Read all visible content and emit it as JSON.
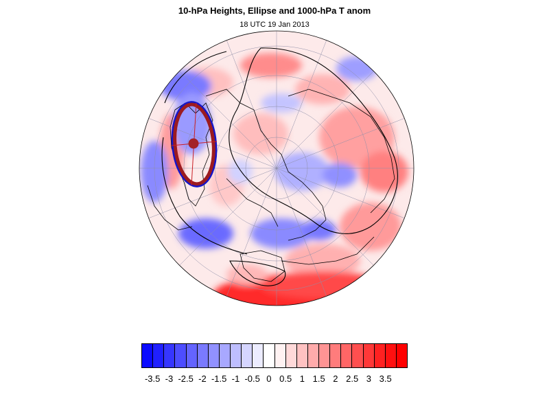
{
  "title": "10-hPa Heights, Ellipse and 1000-hPa T anom",
  "subtitle": "18 UTC 19 Jan 2013",
  "colorbar": {
    "levels": [
      "-3.5",
      "-3",
      "-2.5",
      "-2",
      "-1.5",
      "-1",
      "-0.5",
      "0",
      "0.5",
      "1",
      "1.5",
      "2",
      "2.5",
      "3",
      "3.5"
    ],
    "colors": [
      "#0b0bff",
      "#2020ff",
      "#3636ff",
      "#4d4dff",
      "#6464ff",
      "#7a7aff",
      "#9191ff",
      "#a8a8ff",
      "#bebeff",
      "#d5d5ff",
      "#ececff",
      "#ffffff",
      "#fff2f2",
      "#ffd9d9",
      "#ffc2c2",
      "#ffabab",
      "#ff9494",
      "#ff7c7c",
      "#ff6666",
      "#ff4f4f",
      "#ff3838",
      "#ff2121",
      "#ff1010",
      "#ff0000"
    ]
  },
  "map": {
    "projection": "orthographic, north pole view",
    "field": "1000-hPa temperature anomaly",
    "contours": "10-hPa heights",
    "overlay": "vortex ellipse with centroid",
    "ellipse_color": "#9b1b20",
    "ellipse_outline_color": "#1515c8"
  }
}
